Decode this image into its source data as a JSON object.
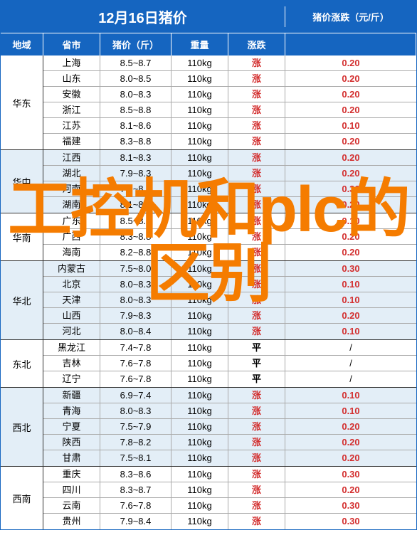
{
  "title": "12月16日猪价",
  "right_header": "猪价涨跌（元/斤）",
  "headers": {
    "region": "地域",
    "prov": "省市",
    "price": "猪价（斤）",
    "weight": "重量",
    "trend": "涨跌"
  },
  "overlay_text": "工控机和plc的区别",
  "colors": {
    "header_bg": "#1565c0",
    "rise": "#d32f2f",
    "alt_bg": "#e3eef7",
    "overlay": "#f57c00"
  },
  "regions": [
    {
      "name": "华东",
      "alt": false,
      "rows": [
        {
          "prov": "上海",
          "price": "8.5~8.7",
          "weight": "110kg",
          "trend": "涨",
          "change": "0.20"
        },
        {
          "prov": "山东",
          "price": "8.0~8.5",
          "weight": "110kg",
          "trend": "涨",
          "change": "0.20"
        },
        {
          "prov": "安徽",
          "price": "8.0~8.3",
          "weight": "110kg",
          "trend": "涨",
          "change": "0.20"
        },
        {
          "prov": "浙江",
          "price": "8.5~8.8",
          "weight": "110kg",
          "trend": "涨",
          "change": "0.20"
        },
        {
          "prov": "江苏",
          "price": "8.1~8.6",
          "weight": "110kg",
          "trend": "涨",
          "change": "0.10"
        },
        {
          "prov": "福建",
          "price": "8.3~8.8",
          "weight": "110kg",
          "trend": "涨",
          "change": "0.20"
        }
      ]
    },
    {
      "name": "华中",
      "alt": true,
      "rows": [
        {
          "prov": "江西",
          "price": "8.1~8.3",
          "weight": "110kg",
          "trend": "涨",
          "change": "0.20"
        },
        {
          "prov": "湖北",
          "price": "7.9~8.3",
          "weight": "110kg",
          "trend": "涨",
          "change": "0.20"
        },
        {
          "prov": "河南",
          "price": "7.9~8.5",
          "weight": "110kg",
          "trend": "涨",
          "change": "0.30"
        },
        {
          "prov": "湖南",
          "price": "8.1~8.6",
          "weight": "110kg",
          "trend": "涨",
          "change": "0.20"
        }
      ]
    },
    {
      "name": "华南",
      "alt": false,
      "rows": [
        {
          "prov": "广东",
          "price": "8.5~8.8",
          "weight": "110kg",
          "trend": "涨",
          "change": "0.10"
        },
        {
          "prov": "广西",
          "price": "8.3~8.8",
          "weight": "110kg",
          "trend": "涨",
          "change": "0.20"
        },
        {
          "prov": "海南",
          "price": "8.2~8.8",
          "weight": "110kg",
          "trend": "涨",
          "change": "0.20"
        }
      ]
    },
    {
      "name": "华北",
      "alt": true,
      "rows": [
        {
          "prov": "内蒙古",
          "price": "7.5~8.0",
          "weight": "110kg",
          "trend": "涨",
          "change": "0.30"
        },
        {
          "prov": "北京",
          "price": "8.0~8.3",
          "weight": "110kg",
          "trend": "涨",
          "change": "0.10"
        },
        {
          "prov": "天津",
          "price": "8.0~8.3",
          "weight": "110kg",
          "trend": "涨",
          "change": "0.10"
        },
        {
          "prov": "山西",
          "price": "7.9~8.3",
          "weight": "110kg",
          "trend": "涨",
          "change": "0.20"
        },
        {
          "prov": "河北",
          "price": "8.0~8.4",
          "weight": "110kg",
          "trend": "涨",
          "change": "0.10"
        }
      ]
    },
    {
      "name": "东北",
      "alt": false,
      "rows": [
        {
          "prov": "黑龙江",
          "price": "7.4~7.8",
          "weight": "110kg",
          "trend": "平",
          "change": "/"
        },
        {
          "prov": "吉林",
          "price": "7.6~7.8",
          "weight": "110kg",
          "trend": "平",
          "change": "/"
        },
        {
          "prov": "辽宁",
          "price": "7.6~7.8",
          "weight": "110kg",
          "trend": "平",
          "change": "/"
        }
      ]
    },
    {
      "name": "西北",
      "alt": true,
      "rows": [
        {
          "prov": "新疆",
          "price": "6.9~7.4",
          "weight": "110kg",
          "trend": "涨",
          "change": "0.10"
        },
        {
          "prov": "青海",
          "price": "8.0~8.3",
          "weight": "110kg",
          "trend": "涨",
          "change": "0.10"
        },
        {
          "prov": "宁夏",
          "price": "7.5~7.9",
          "weight": "110kg",
          "trend": "涨",
          "change": "0.20"
        },
        {
          "prov": "陕西",
          "price": "7.8~8.2",
          "weight": "110kg",
          "trend": "涨",
          "change": "0.20"
        },
        {
          "prov": "甘肃",
          "price": "7.5~8.1",
          "weight": "110kg",
          "trend": "涨",
          "change": "0.20"
        }
      ]
    },
    {
      "name": "西南",
      "alt": false,
      "rows": [
        {
          "prov": "重庆",
          "price": "8.3~8.6",
          "weight": "110kg",
          "trend": "涨",
          "change": "0.30"
        },
        {
          "prov": "四川",
          "price": "8.3~8.7",
          "weight": "110kg",
          "trend": "涨",
          "change": "0.20"
        },
        {
          "prov": "云南",
          "price": "7.6~7.8",
          "weight": "110kg",
          "trend": "涨",
          "change": "0.30"
        },
        {
          "prov": "贵州",
          "price": "7.9~8.4",
          "weight": "110kg",
          "trend": "涨",
          "change": "0.30"
        }
      ]
    }
  ]
}
